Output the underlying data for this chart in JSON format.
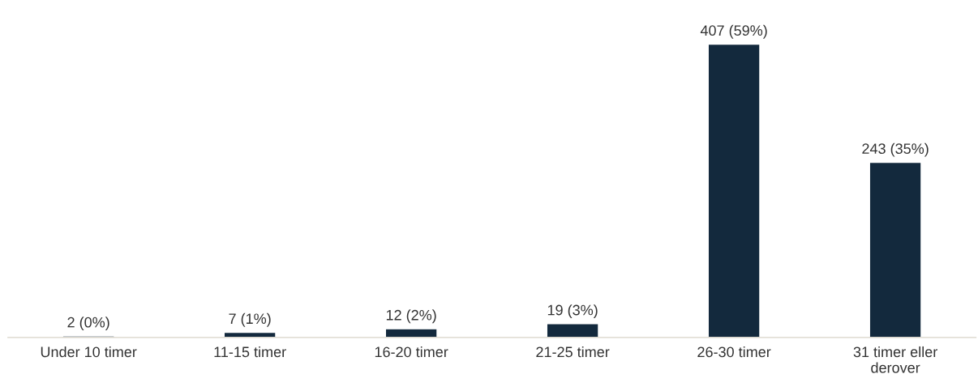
{
  "chart_data": {
    "type": "bar",
    "categories": [
      "Under 10 timer",
      "11-15 timer",
      "16-20 timer",
      "21-25 timer",
      "26-30 timer",
      "31 timer eller\nderover"
    ],
    "values": [
      2,
      7,
      12,
      19,
      407,
      243
    ],
    "value_labels": [
      "2 (0%)",
      "7 (1%)",
      "12 (2%)",
      "19 (3%)",
      "407 (59%)",
      "243 (35%)"
    ],
    "color": "#13293d",
    "grid": false,
    "legend": false
  }
}
